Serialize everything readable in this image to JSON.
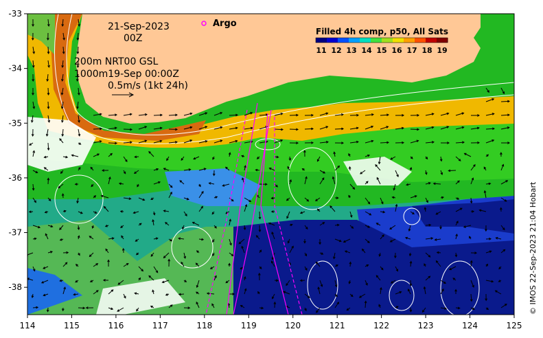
{
  "map": {
    "lon_range": [
      114,
      125
    ],
    "lat_range": [
      -38.5,
      -33
    ],
    "lon_ticks": [
      "114",
      "115",
      "116",
      "117",
      "118",
      "119",
      "120",
      "121",
      "122",
      "123",
      "124",
      "125"
    ],
    "lat_ticks": [
      "-33",
      "-34",
      "-35",
      "-36",
      "-37",
      "-38"
    ],
    "land_color": "#ffc896"
  },
  "annotations": {
    "date": "21-Sep-2023",
    "time": "00Z",
    "contour_line1": "200m  NRT00 GSL",
    "contour_line2": "1000m19-Sep 00:00Z",
    "vector_scale": "0.5m/s (1kt 24h)"
  },
  "legend": {
    "argo_label": "Argo",
    "argo_marker_color": "#ff00ff",
    "colorbar_title": "Filled 4h comp, p50, All Sats",
    "colorbar_ticks": [
      "11",
      "12",
      "13",
      "14",
      "15",
      "16",
      "17",
      "18",
      "19"
    ],
    "colorbar_colors": [
      "#000080",
      "#0000d0",
      "#0050ff",
      "#00a0ff",
      "#00e0c0",
      "#40e040",
      "#a0e020",
      "#f0e000",
      "#ffa000",
      "#ff5000",
      "#c00000",
      "#800000"
    ]
  },
  "credit": "© IMOS 22-Sep-2023 21:04 Hobart"
}
